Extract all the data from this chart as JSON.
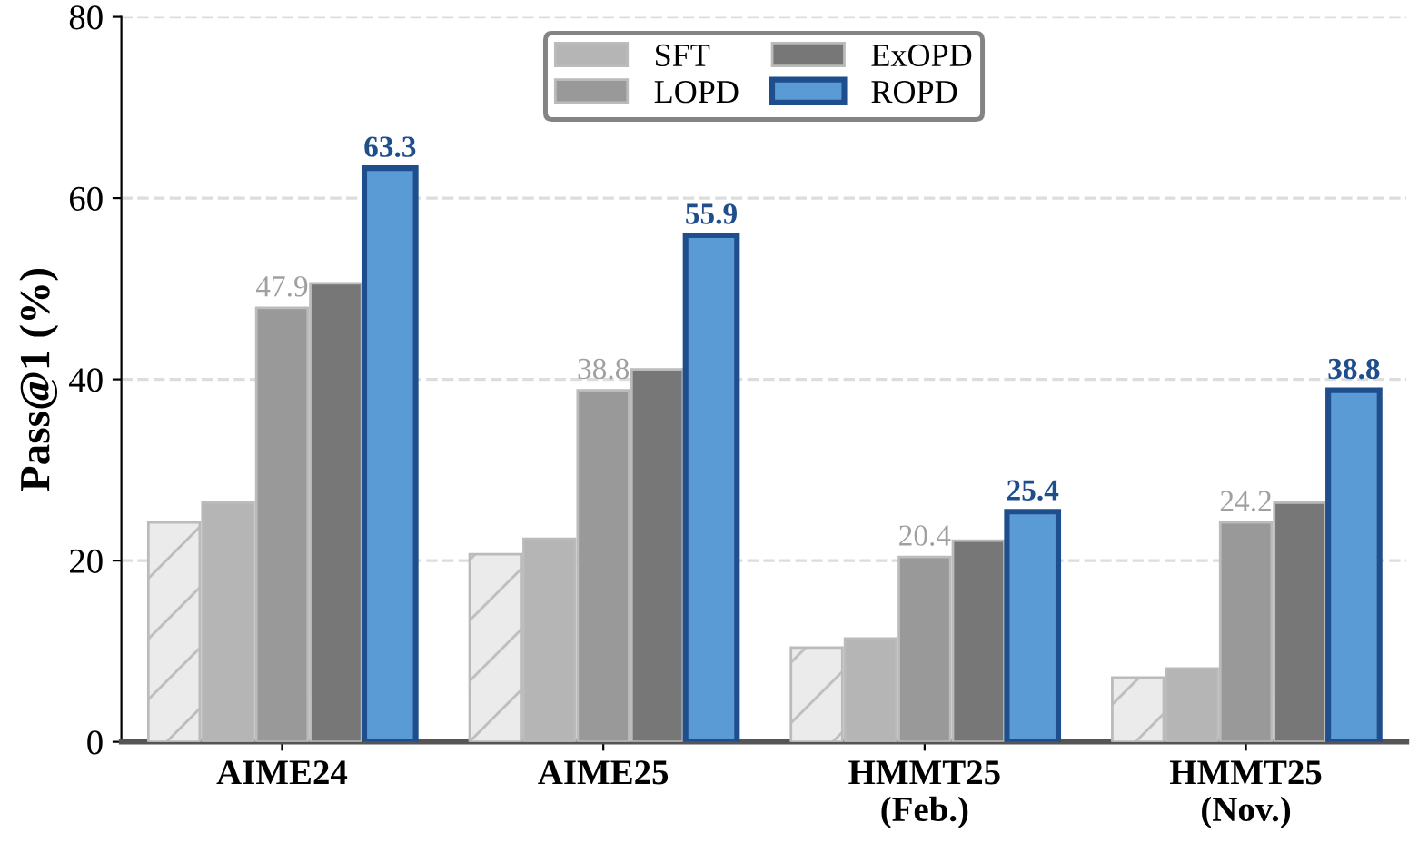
{
  "chart_data": {
    "type": "bar",
    "ylabel": "Pass@1 (%)",
    "categories": [
      "AIME24",
      "AIME25",
      "HMMT25\n(Feb.)",
      "HMMT25\n(Nov.)"
    ],
    "series": [
      {
        "color": "#ebebeb",
        "values": [
          24.2,
          20.7,
          10.4,
          7.1
        ]
      },
      {
        "name": "SFT",
        "color": "#b5b5b5",
        "values": [
          26.4,
          22.4,
          11.4,
          8.1
        ]
      },
      {
        "name": "LOPD",
        "color": "#999999",
        "values": [
          47.9,
          38.8,
          20.4,
          24.2
        ],
        "value_labels": [
          "47.9",
          "38.8",
          "20.4",
          "24.2"
        ]
      },
      {
        "name": "ExOPD",
        "color": "#777777",
        "values": [
          50.6,
          41.1,
          22.2,
          26.4
        ]
      },
      {
        "name": "ROPD",
        "color": "#5b9bd5",
        "values": [
          63.3,
          55.9,
          25.4,
          38.8
        ],
        "value_labels": [
          "63.3",
          "55.9",
          "25.4",
          "38.8"
        ]
      }
    ],
    "ylim": [
      0,
      80
    ],
    "yticks": [
      0,
      20,
      40,
      60,
      80
    ],
    "grid": "y",
    "legend": "top"
  }
}
